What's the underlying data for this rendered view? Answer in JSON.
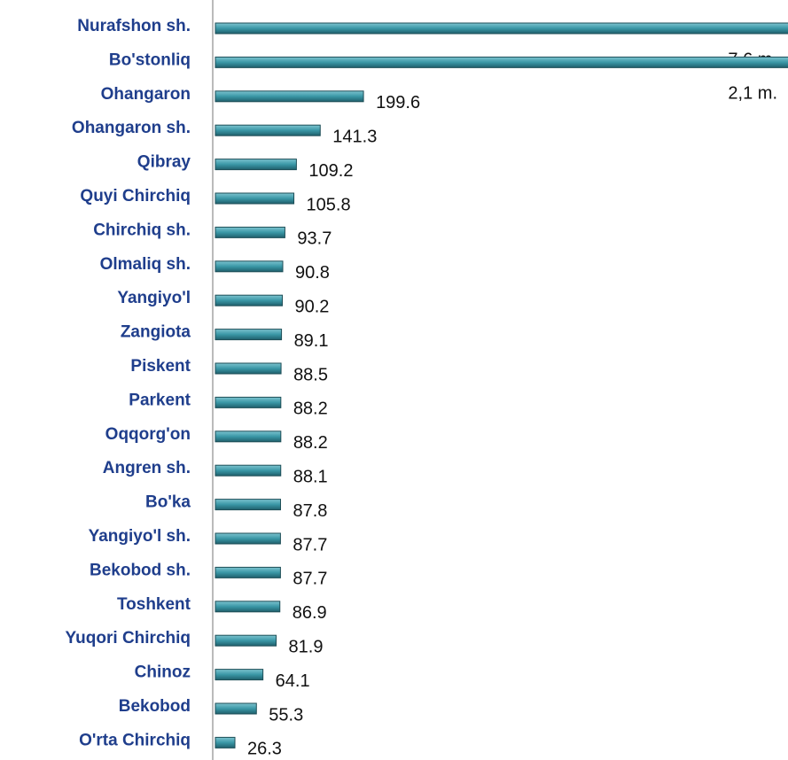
{
  "chart_data": {
    "type": "bar",
    "orientation": "horizontal",
    "categories": [
      "Nurafshon sh.",
      "Bo'stonliq",
      "Ohangaron",
      "Ohangaron sh.",
      "Qibray",
      "Quyi Chirchiq",
      "Chirchiq sh.",
      "Olmaliq sh.",
      "Yangiyo'l",
      "Zangiota",
      "Piskent",
      "Parkent",
      "Oqqorg'on",
      "Angren sh.",
      "Bo'ka",
      "Yangiyo'l sh.",
      "Bekobod sh.",
      "Toshkent",
      "Yuqori Chirchiq",
      "Chinoz",
      "Bekobod",
      "O'rta Chirchiq"
    ],
    "values": [
      7600000,
      2100000,
      199.6,
      141.3,
      109.2,
      105.8,
      93.7,
      90.8,
      90.2,
      89.1,
      88.5,
      88.2,
      88.2,
      88.1,
      87.8,
      87.7,
      87.7,
      86.9,
      81.9,
      64.1,
      55.3,
      26.3
    ],
    "value_labels": [
      "7,6 m.",
      "2,1 m.",
      "199.6",
      "141.3",
      "109.2",
      "105.8",
      "93.7",
      "90.8",
      "90.2",
      "89.1",
      "88.5",
      "88.2",
      "88.2",
      "88.1",
      "87.8",
      "87.7",
      "87.7",
      "86.9",
      "81.9",
      "64.1",
      "55.3",
      "26.3"
    ],
    "color": "#3a97a6"
  }
}
